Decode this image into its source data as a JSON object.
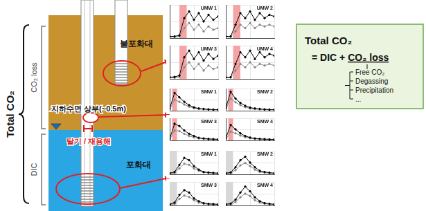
{
  "diagram": {
    "left_label": "Total CO₂",
    "brackets": [
      "CO₂ loss",
      "DIC"
    ],
    "unsaturated_label": "불포화대",
    "saturated_label": "포화대",
    "water_table_label": "지하수면 상부(~0.5m)",
    "process_label": "탈기 / 재용해",
    "formula": {
      "title": "Total CO₂",
      "equation_prefix": "= DIC + ",
      "equation_underlined": "CO₂ loss",
      "items": [
        "Free CO₂",
        "Degassing",
        "Precipitation",
        "..."
      ]
    }
  },
  "chart_data": [
    {
      "type": "line",
      "title": "UMW 1",
      "x": [
        0,
        1,
        2,
        3,
        4,
        5,
        6,
        7,
        8,
        9,
        10
      ],
      "xlim": [
        0,
        10
      ],
      "xticks": [
        0,
        5,
        10
      ],
      "ylim": [
        0,
        100
      ],
      "yticks": [
        0,
        50,
        100
      ],
      "grid": true,
      "tick_labels": false,
      "shaded": {
        "x": [
          2,
          3.5
        ],
        "color": "#f4a4a4"
      },
      "series": [
        {
          "color": "#000000",
          "marker": "circle",
          "values": [
            5,
            5,
            8,
            60,
            80,
            55,
            75,
            50,
            70,
            55,
            65
          ]
        },
        {
          "color": "#888888",
          "marker": "circle",
          "values": [
            3,
            3,
            5,
            30,
            45,
            25,
            40,
            20,
            35,
            25,
            30
          ]
        }
      ]
    },
    {
      "type": "line",
      "title": "UMW 2",
      "x": [
        0,
        1,
        2,
        3,
        4,
        5,
        6,
        7,
        8,
        9,
        10
      ],
      "xlim": [
        0,
        10
      ],
      "xticks": [
        0,
        5,
        10
      ],
      "ylim": [
        0,
        100
      ],
      "yticks": [
        0,
        50,
        100
      ],
      "grid": true,
      "tick_labels": false,
      "shaded": {
        "x": [
          1.5,
          3
        ],
        "color": "#f4a4a4"
      },
      "series": [
        {
          "color": "#000000",
          "marker": "circle",
          "values": [
            5,
            5,
            40,
            75,
            60,
            80,
            55,
            75,
            60,
            70,
            65
          ]
        },
        {
          "color": "#888888",
          "marker": "circle",
          "values": [
            3,
            4,
            20,
            40,
            30,
            45,
            30,
            40,
            35,
            40,
            35
          ]
        }
      ]
    },
    {
      "type": "line",
      "title": "UMW 3",
      "x": [
        0,
        1,
        2,
        3,
        4,
        5,
        6,
        7,
        8,
        9,
        10
      ],
      "xlim": [
        0,
        10
      ],
      "xticks": [
        0,
        5,
        10
      ],
      "ylim": [
        0,
        100
      ],
      "yticks": [
        0,
        50,
        100
      ],
      "grid": true,
      "tick_labels": false,
      "shaded": {
        "x": [
          2,
          3.5
        ],
        "color": "#f4a4a4"
      },
      "series": [
        {
          "color": "#000000",
          "marker": "circle",
          "values": [
            5,
            6,
            10,
            65,
            85,
            60,
            80,
            55,
            75,
            60,
            70
          ]
        },
        {
          "color": "#888888",
          "marker": "circle",
          "values": [
            3,
            3,
            6,
            35,
            50,
            30,
            45,
            25,
            40,
            30,
            35
          ]
        }
      ]
    },
    {
      "type": "line",
      "title": "UMW 4",
      "x": [
        0,
        1,
        2,
        3,
        4,
        5,
        6,
        7,
        8,
        9,
        10
      ],
      "xlim": [
        0,
        10
      ],
      "xticks": [
        0,
        5,
        10
      ],
      "ylim": [
        0,
        100
      ],
      "yticks": [
        0,
        50,
        100
      ],
      "grid": true,
      "tick_labels": false,
      "shaded": {
        "x": [
          1.5,
          3
        ],
        "color": "#f4a4a4"
      },
      "series": [
        {
          "color": "#000000",
          "marker": "circle",
          "values": [
            5,
            5,
            45,
            80,
            65,
            85,
            60,
            80,
            65,
            75,
            70
          ]
        },
        {
          "color": "#888888",
          "marker": "circle",
          "values": [
            3,
            4,
            25,
            45,
            35,
            50,
            35,
            45,
            40,
            45,
            40
          ]
        }
      ]
    },
    {
      "type": "line",
      "title": "SMW 1",
      "x": [
        0,
        1,
        2,
        3,
        4,
        5,
        6,
        7,
        8,
        9,
        10
      ],
      "xlim": [
        0,
        10
      ],
      "xticks": [
        0,
        5,
        10
      ],
      "ylim": [
        0,
        100
      ],
      "yticks": [
        0,
        50,
        100
      ],
      "grid": true,
      "tick_labels": false,
      "shaded": {
        "x": [
          0.5,
          1.5
        ],
        "color": "#f4a4a4"
      },
      "series": [
        {
          "color": "#000000",
          "marker": "circle",
          "values": [
            10,
            80,
            60,
            40,
            25,
            15,
            10,
            8,
            6,
            5,
            5
          ]
        },
        {
          "color": "#888888",
          "marker": "circle",
          "values": [
            5,
            50,
            40,
            28,
            18,
            12,
            8,
            6,
            5,
            4,
            4
          ]
        }
      ]
    },
    {
      "type": "line",
      "title": "SMW 2",
      "x": [
        0,
        1,
        2,
        3,
        4,
        5,
        6,
        7,
        8,
        9,
        10
      ],
      "xlim": [
        0,
        10
      ],
      "xticks": [
        0,
        5,
        10
      ],
      "ylim": [
        0,
        100
      ],
      "yticks": [
        0,
        50,
        100
      ],
      "grid": true,
      "tick_labels": false,
      "shaded": {
        "x": [
          0.5,
          1.5
        ],
        "color": "#f4a4a4"
      },
      "series": [
        {
          "color": "#000000",
          "marker": "circle",
          "values": [
            12,
            85,
            55,
            35,
            22,
            14,
            10,
            8,
            6,
            5,
            5
          ]
        },
        {
          "color": "#888888",
          "marker": "circle",
          "values": [
            6,
            55,
            38,
            25,
            16,
            10,
            8,
            6,
            5,
            4,
            4
          ]
        }
      ]
    },
    {
      "type": "line",
      "title": "SMW 3",
      "x": [
        0,
        1,
        2,
        3,
        4,
        5,
        6,
        7,
        8,
        9,
        10
      ],
      "xlim": [
        0,
        10
      ],
      "xticks": [
        0,
        5,
        10
      ],
      "ylim": [
        0,
        100
      ],
      "yticks": [
        0,
        50,
        100
      ],
      "grid": true,
      "tick_labels": false,
      "shaded": {
        "x": [
          0.5,
          1.5
        ],
        "color": "#f4a4a4"
      },
      "series": [
        {
          "color": "#000000",
          "marker": "circle",
          "values": [
            8,
            75,
            65,
            45,
            30,
            20,
            12,
            9,
            7,
            6,
            5
          ]
        },
        {
          "color": "#888888",
          "marker": "circle",
          "values": [
            4,
            45,
            42,
            30,
            20,
            14,
            9,
            7,
            5,
            4,
            4
          ]
        }
      ]
    },
    {
      "type": "line",
      "title": "SMW 4",
      "x": [
        0,
        1,
        2,
        3,
        4,
        5,
        6,
        7,
        8,
        9,
        10
      ],
      "xlim": [
        0,
        10
      ],
      "xticks": [
        0,
        5,
        10
      ],
      "ylim": [
        0,
        100
      ],
      "yticks": [
        0,
        50,
        100
      ],
      "grid": true,
      "tick_labels": false,
      "shaded": {
        "x": [
          0.5,
          1.5
        ],
        "color": "#f4a4a4"
      },
      "series": [
        {
          "color": "#000000",
          "marker": "circle",
          "values": [
            10,
            70,
            50,
            32,
            20,
            13,
            9,
            7,
            6,
            5,
            5
          ]
        },
        {
          "color": "#888888",
          "marker": "circle",
          "values": [
            5,
            40,
            32,
            22,
            15,
            10,
            7,
            6,
            5,
            4,
            4
          ]
        }
      ]
    },
    {
      "type": "line",
      "title": "SMW 1",
      "x": [
        0,
        1,
        2,
        3,
        4,
        5,
        6,
        7,
        8,
        9,
        10
      ],
      "xlim": [
        0,
        10
      ],
      "xticks": [
        0,
        5,
        10
      ],
      "ylim": [
        0,
        100
      ],
      "yticks": [
        0,
        50,
        100
      ],
      "grid": true,
      "tick_labels": false,
      "shaded": {
        "x": [
          0,
          1.5
        ],
        "color": "#d8d8d8"
      },
      "series": [
        {
          "color": "#000000",
          "marker": "circle",
          "values": [
            5,
            10,
            40,
            70,
            60,
            35,
            20,
            10,
            8,
            6,
            5
          ]
        },
        {
          "color": "#888888",
          "marker": "circle",
          "values": [
            3,
            6,
            25,
            45,
            40,
            25,
            15,
            8,
            6,
            5,
            4
          ]
        }
      ]
    },
    {
      "type": "line",
      "title": "SMW 2",
      "x": [
        0,
        1,
        2,
        3,
        4,
        5,
        6,
        7,
        8,
        9,
        10
      ],
      "xlim": [
        0,
        10
      ],
      "xticks": [
        0,
        5,
        10
      ],
      "ylim": [
        0,
        100
      ],
      "yticks": [
        0,
        50,
        100
      ],
      "grid": true,
      "tick_labels": false,
      "shaded": {
        "x": [
          0,
          1.5
        ],
        "color": "#d8d8d8"
      },
      "series": [
        {
          "color": "#000000",
          "marker": "circle",
          "values": [
            5,
            8,
            30,
            60,
            75,
            50,
            30,
            15,
            10,
            7,
            5
          ]
        },
        {
          "color": "#888888",
          "marker": "circle",
          "values": [
            3,
            5,
            18,
            38,
            48,
            35,
            20,
            10,
            7,
            5,
            4
          ]
        }
      ]
    },
    {
      "type": "line",
      "title": "SMW 3",
      "x": [
        0,
        1,
        2,
        3,
        4,
        5,
        6,
        7,
        8,
        9,
        10
      ],
      "xlim": [
        0,
        10
      ],
      "xticks": [
        0,
        5,
        10
      ],
      "ylim": [
        0,
        100
      ],
      "yticks": [
        0,
        50,
        100
      ],
      "grid": true,
      "tick_labels": false,
      "shaded": {
        "x": [
          0,
          1.5
        ],
        "color": "#d8d8d8"
      },
      "series": [
        {
          "color": "#000000",
          "marker": "circle",
          "values": [
            5,
            12,
            45,
            65,
            55,
            30,
            18,
            10,
            7,
            6,
            5
          ]
        },
        {
          "color": "#888888",
          "marker": "circle",
          "values": [
            3,
            7,
            28,
            42,
            36,
            22,
            12,
            7,
            5,
            4,
            4
          ]
        }
      ]
    },
    {
      "type": "line",
      "title": "SMW 4",
      "x": [
        0,
        1,
        2,
        3,
        4,
        5,
        6,
        7,
        8,
        9,
        10
      ],
      "xlim": [
        0,
        10
      ],
      "xticks": [
        0,
        5,
        10
      ],
      "ylim": [
        0,
        100
      ],
      "yticks": [
        0,
        50,
        100
      ],
      "grid": true,
      "tick_labels": false,
      "shaded": {
        "x": [
          0,
          1.5
        ],
        "color": "#d8d8d8"
      },
      "series": [
        {
          "color": "#000000",
          "marker": "circle",
          "values": [
            5,
            8,
            25,
            55,
            80,
            60,
            35,
            18,
            10,
            7,
            5
          ]
        },
        {
          "color": "#888888",
          "marker": "circle",
          "values": [
            3,
            5,
            15,
            35,
            50,
            40,
            22,
            12,
            7,
            5,
            4
          ]
        }
      ]
    }
  ]
}
